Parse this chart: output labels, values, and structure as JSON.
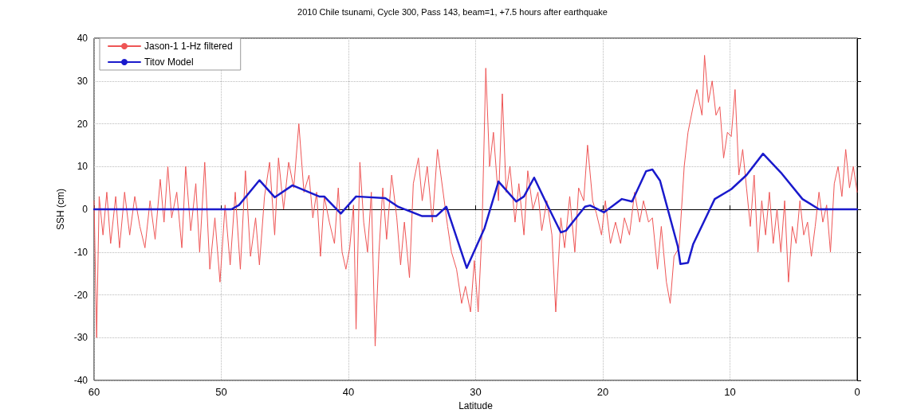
{
  "chart_data": {
    "type": "line",
    "title": "2010 Chile tsunami, Cycle 300, Pass 143, beam=1, +7.5 hours after earthquake",
    "xlabel": "Latitude",
    "ylabel": "SSH (cm)",
    "xlim": [
      60,
      0
    ],
    "xticks": [
      60,
      50,
      40,
      30,
      20,
      10,
      0
    ],
    "ylim": [
      -40,
      40
    ],
    "yticks": [
      -40,
      -30,
      -20,
      -10,
      0,
      10,
      20,
      30,
      40
    ],
    "grid": true,
    "legend": "top left",
    "marker": "none",
    "line_style": "solid",
    "series": [
      {
        "name": "Jason-1 1-Hz filtered",
        "color": "#ee5555",
        "x": [
          60.0,
          59.8,
          59.6,
          59.3,
          59.0,
          58.7,
          58.3,
          58.0,
          57.6,
          57.2,
          56.8,
          56.4,
          56.0,
          55.6,
          55.2,
          54.8,
          54.5,
          54.2,
          53.9,
          53.5,
          53.1,
          52.8,
          52.4,
          52.0,
          51.7,
          51.3,
          50.9,
          50.5,
          50.1,
          49.7,
          49.3,
          48.9,
          48.5,
          48.1,
          47.7,
          47.3,
          47.0,
          46.6,
          46.2,
          45.8,
          45.5,
          45.1,
          44.7,
          44.3,
          43.9,
          43.5,
          43.1,
          42.8,
          42.5,
          42.2,
          41.9,
          41.5,
          41.1,
          40.8,
          40.5,
          40.2,
          39.9,
          39.6,
          39.4,
          39.1,
          38.8,
          38.5,
          38.2,
          37.9,
          37.6,
          37.3,
          37.0,
          36.6,
          36.2,
          35.9,
          35.6,
          35.2,
          34.9,
          34.5,
          34.2,
          33.8,
          33.4,
          33.0,
          32.6,
          32.2,
          31.9,
          31.5,
          31.1,
          30.8,
          30.4,
          30.1,
          29.8,
          29.5,
          29.2,
          28.9,
          28.6,
          28.2,
          27.9,
          27.6,
          27.3,
          26.9,
          26.6,
          26.2,
          25.9,
          25.5,
          25.1,
          24.8,
          24.4,
          24.0,
          23.7,
          23.3,
          23.0,
          22.6,
          22.2,
          21.9,
          21.5,
          21.2,
          20.8,
          20.5,
          20.1,
          19.8,
          19.4,
          19.0,
          18.6,
          18.3,
          17.9,
          17.5,
          17.1,
          16.8,
          16.4,
          16.1,
          15.7,
          15.4,
          15.0,
          14.7,
          14.4,
          14.0,
          13.6,
          13.3,
          12.9,
          12.6,
          12.2,
          12.0,
          11.7,
          11.4,
          11.1,
          10.8,
          10.5,
          10.2,
          9.9,
          9.6,
          9.3,
          9.0,
          8.7,
          8.4,
          8.1,
          7.8,
          7.5,
          7.2,
          6.9,
          6.6,
          6.3,
          6.0,
          5.7,
          5.4,
          5.1,
          4.8,
          4.5,
          4.2,
          3.9,
          3.6,
          3.3,
          3.0,
          2.7,
          2.4,
          2.1,
          1.8,
          1.5,
          1.2,
          0.9,
          0.6,
          0.3,
          0.0
        ],
        "values": [
          2,
          -30,
          3,
          -6,
          4,
          -8,
          3,
          -9,
          4,
          -6,
          3,
          -4,
          -9,
          2,
          -7,
          7,
          -3,
          10,
          -2,
          4,
          -9,
          10,
          -5,
          6,
          -10,
          11,
          -14,
          -2,
          -17,
          1,
          -13,
          4,
          -14,
          9,
          -11,
          -2,
          -13,
          3,
          11,
          -6,
          12,
          0,
          11,
          5,
          20,
          4,
          8,
          -2,
          4,
          -11,
          3,
          -3,
          -8,
          5,
          -10,
          -14,
          -9,
          1,
          -28,
          11,
          -3,
          -10,
          4,
          -32,
          -10,
          5,
          -7,
          8,
          -2,
          -13,
          -3,
          -16,
          6,
          12,
          2,
          10,
          -3,
          14,
          5,
          -4,
          -10,
          -14,
          -22,
          -18,
          -24,
          -12,
          -24,
          -5,
          33,
          10,
          18,
          2,
          27,
          4,
          10,
          -3,
          6,
          -6,
          9,
          0,
          4,
          -5,
          2,
          -6,
          -24,
          -2,
          -9,
          3,
          -10,
          5,
          2,
          15,
          2,
          -1,
          -6,
          2,
          -8,
          -3,
          -8,
          -2,
          -6,
          4,
          -3,
          2,
          -3,
          -2,
          -14,
          -4,
          -17,
          -22,
          -11,
          -9,
          10,
          18,
          24,
          28,
          22,
          36,
          25,
          30,
          22,
          24,
          12,
          18,
          17,
          28,
          8,
          14,
          5,
          -4,
          8,
          -10,
          2,
          -6,
          4,
          -8,
          0,
          -10,
          2,
          -17,
          -4,
          -8,
          2,
          -6,
          -3,
          -11,
          -4,
          4,
          -3,
          1,
          -10,
          6,
          10,
          3,
          14,
          5,
          10,
          4
        ]
      },
      {
        "name": "Titov Model",
        "color": "#1a1acc",
        "x": [
          60,
          49.2,
          48.6,
          47.0,
          45.8,
          44.4,
          42.3,
          41.9,
          40.6,
          39.4,
          37.1,
          36.1,
          34.2,
          33.1,
          32.3,
          30.7,
          29.3,
          28.2,
          26.8,
          26.2,
          25.4,
          24.3,
          23.3,
          22.9,
          21.4,
          21.0,
          19.9,
          18.5,
          17.7,
          16.6,
          16.1,
          15.5,
          14.1,
          13.9,
          13.3,
          12.9,
          11.2,
          9.9,
          8.7,
          7.4,
          6.0,
          4.3,
          3.0,
          0
        ],
        "values": [
          0,
          0,
          1,
          6.8,
          2.8,
          5.6,
          3,
          3,
          -1,
          3,
          2.6,
          0.6,
          -1.6,
          -1.6,
          0.6,
          -13.7,
          -4.4,
          6.5,
          1.8,
          3,
          7.4,
          0.6,
          -5.4,
          -5,
          0.6,
          0.9,
          -0.7,
          2.4,
          1.8,
          8.9,
          9.3,
          6.7,
          -8.7,
          -12.8,
          -12.5,
          -8.2,
          2.4,
          4.7,
          8,
          13,
          8.6,
          2.4,
          0,
          0
        ]
      }
    ]
  }
}
